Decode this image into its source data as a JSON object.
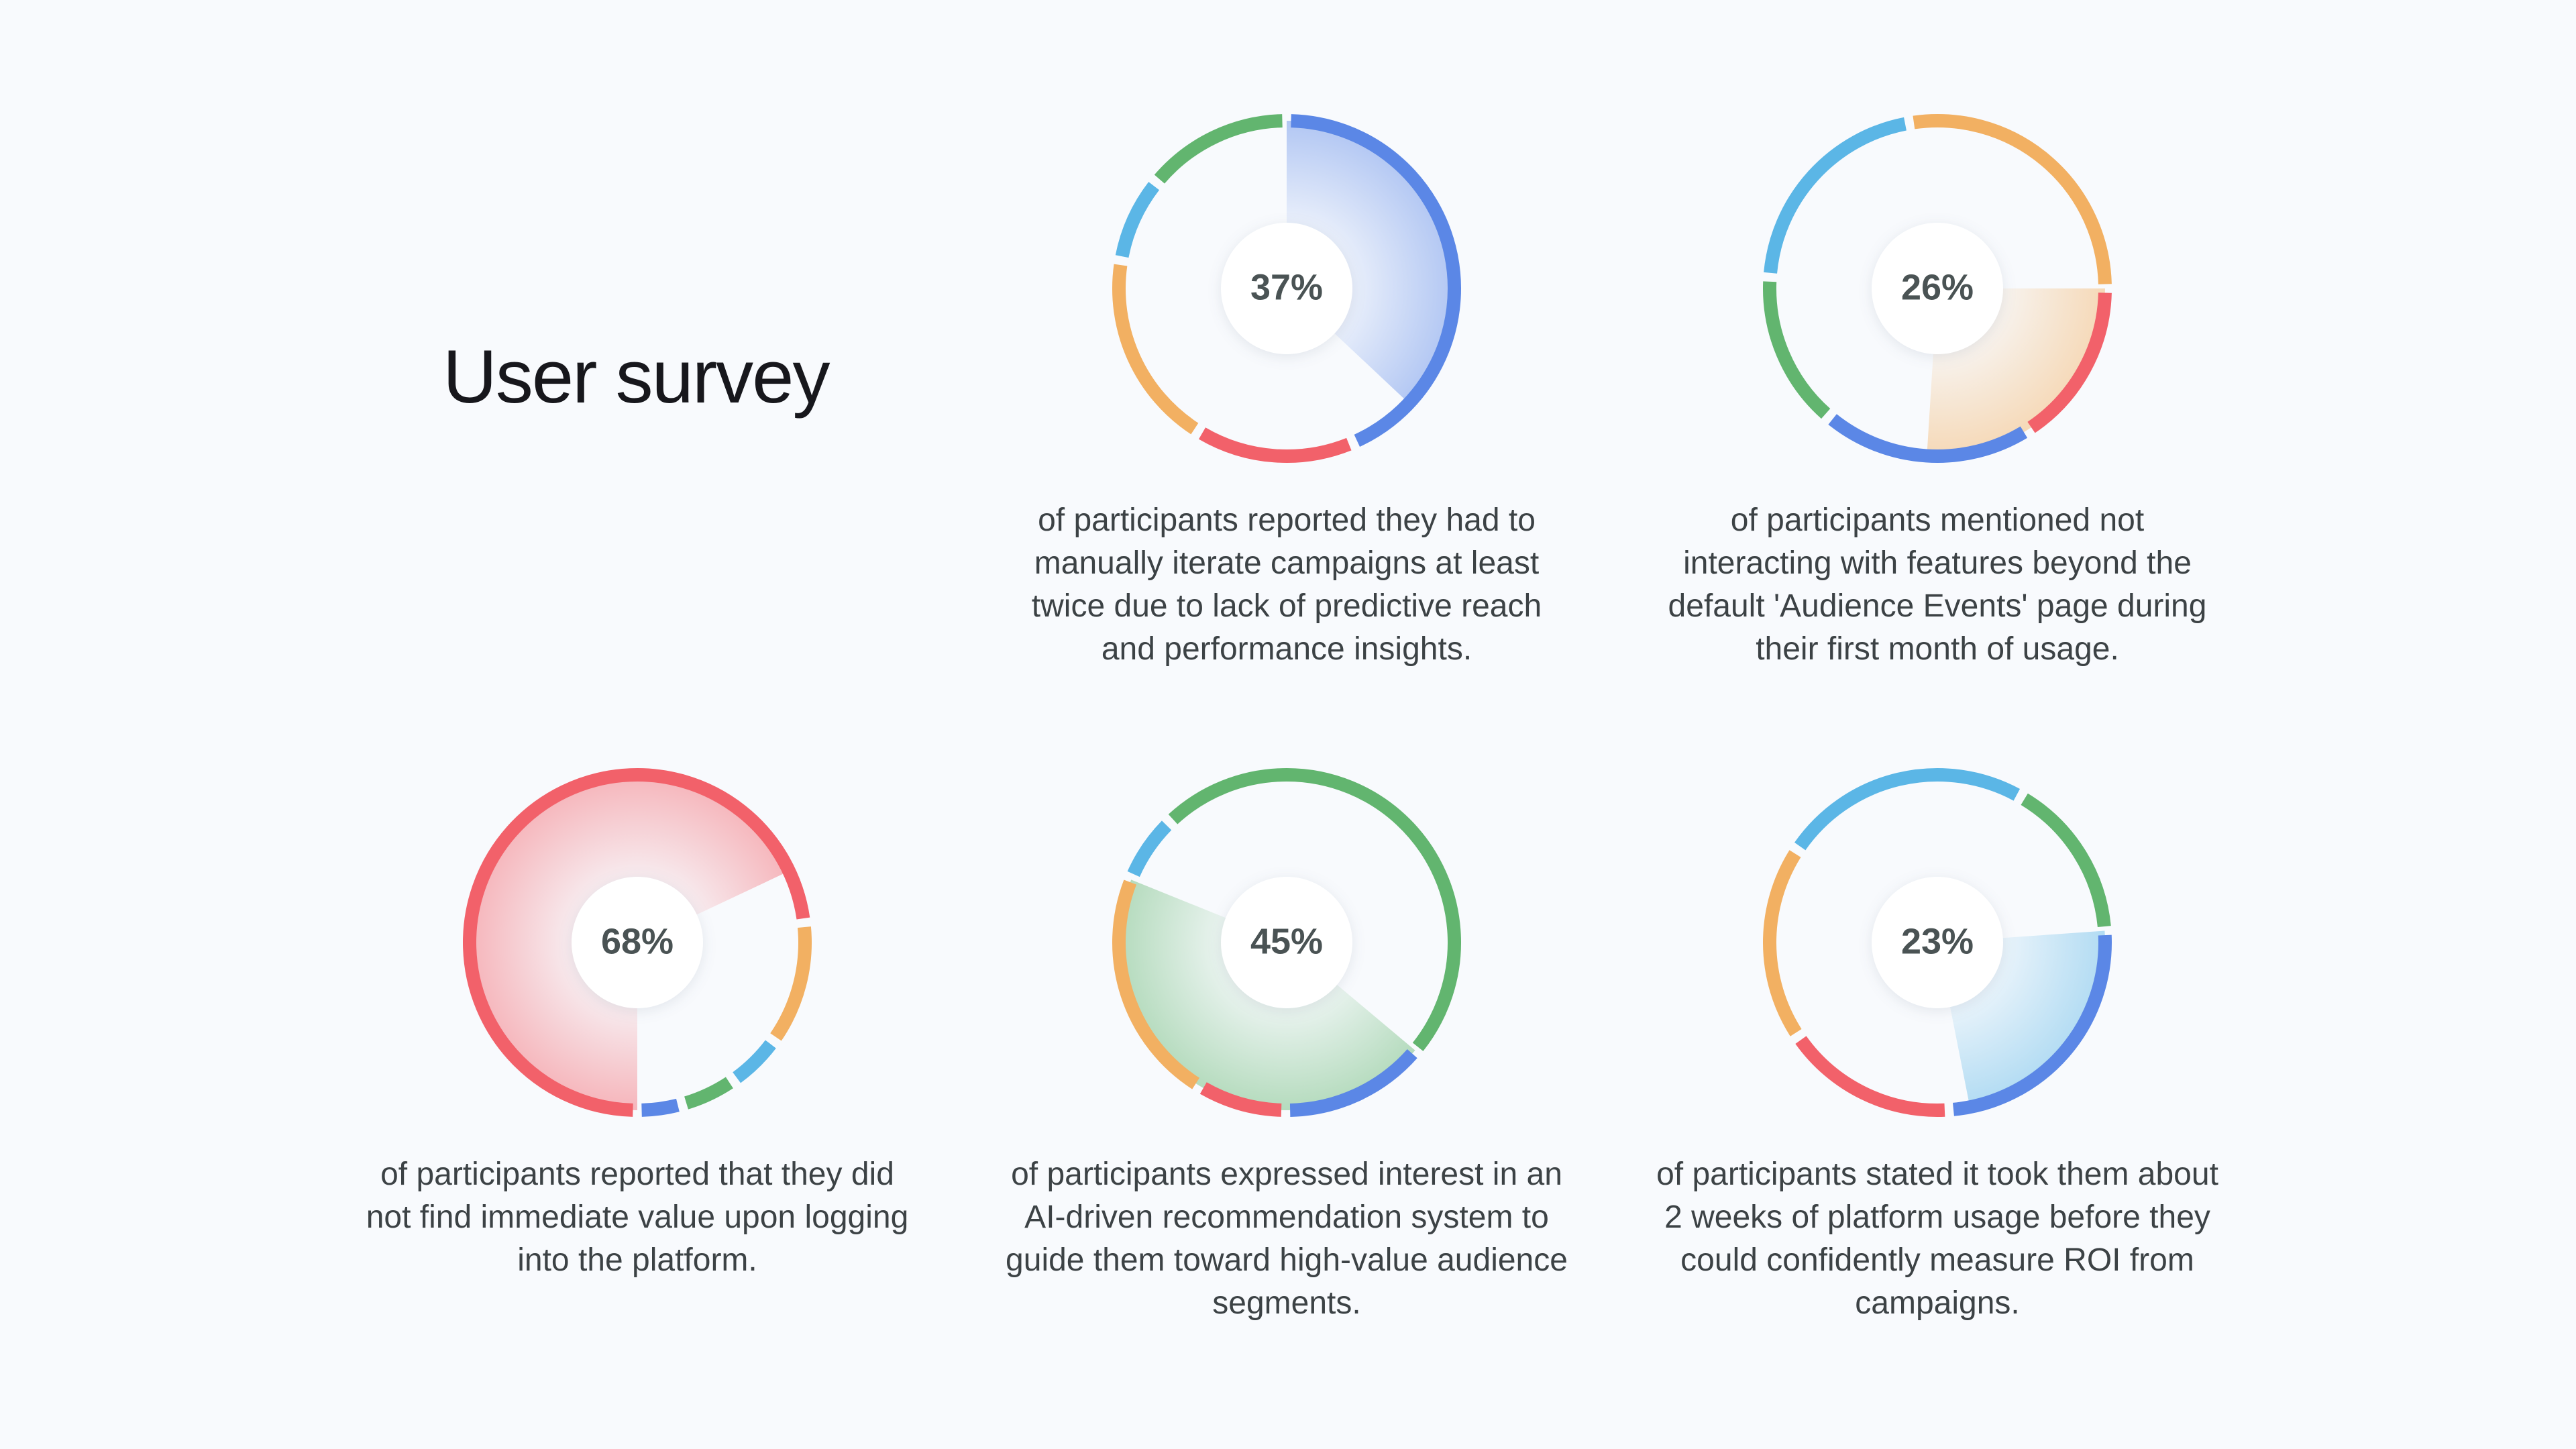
{
  "title": "User survey",
  "colors": {
    "blue": "#5b87e6",
    "red": "#f2616a",
    "orange": "#f2b062",
    "light_blue": "#5bb6e6",
    "green": "#62b56f"
  },
  "chart_data": [
    {
      "type": "pie",
      "value_label": "37%",
      "highlight": {
        "value": 37,
        "color": "blue"
      },
      "ring": [
        {
          "color": "blue",
          "value": 37
        },
        {
          "color": "red",
          "value": 13
        },
        {
          "color": "orange",
          "value": 16
        },
        {
          "color": "light_blue",
          "value": 7
        },
        {
          "color": "green",
          "value": 12
        }
      ],
      "start_angle": 90,
      "description": "of participants reported they had to manually iterate campaigns at least twice due to lack of predictive reach and performance insights."
    },
    {
      "type": "pie",
      "value_label": "26%",
      "highlight": {
        "value": 26,
        "color": "orange"
      },
      "ring": [
        {
          "color": "red",
          "value": 15
        },
        {
          "color": "blue",
          "value": 19
        },
        {
          "color": "green",
          "value": 14
        },
        {
          "color": "light_blue",
          "value": 20
        },
        {
          "color": "orange",
          "value": 26
        }
      ],
      "start_angle": 0,
      "description": "of participants mentioned not interacting with features beyond the default 'Audience Events' page during their first month of usage."
    },
    {
      "type": "pie",
      "value_label": "68%",
      "highlight": {
        "value": 68,
        "color": "red"
      },
      "ring": [
        {
          "color": "red",
          "value": 68
        },
        {
          "color": "orange",
          "value": 11
        },
        {
          "color": "light_blue",
          "value": 5
        },
        {
          "color": "green",
          "value": 5
        },
        {
          "color": "blue",
          "value": 4
        }
      ],
      "start_angle": 270,
      "description": "of participants reported that they did not find immediate value upon logging into the platform."
    },
    {
      "type": "pie",
      "value_label": "45%",
      "highlight": {
        "value": 45,
        "color": "green"
      },
      "ring": [
        {
          "color": "blue",
          "value": 13
        },
        {
          "color": "red",
          "value": 8
        },
        {
          "color": "orange",
          "value": 21
        },
        {
          "color": "light_blue",
          "value": 6
        },
        {
          "color": "green",
          "value": 45
        }
      ],
      "start_angle": 320,
      "description": "of participants expressed interest in an AI-driven recommendation system to guide them toward high-value audience segments."
    },
    {
      "type": "pie",
      "value_label": "23%",
      "highlight": {
        "value": 23,
        "color": "light_blue"
      },
      "ring": [
        {
          "color": "blue",
          "value": 24
        },
        {
          "color": "red",
          "value": 16
        },
        {
          "color": "orange",
          "value": 18
        },
        {
          "color": "light_blue",
          "value": 23
        },
        {
          "color": "green",
          "value": 15
        }
      ],
      "start_angle": 4,
      "description": "of participants stated it took them about 2 weeks of platform usage before they could confidently measure ROI from campaigns."
    }
  ]
}
